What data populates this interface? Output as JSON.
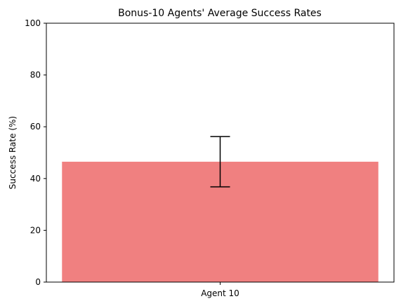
{
  "chart_data": {
    "type": "bar",
    "title": "Bonus-10 Agents' Average Success Rates",
    "xlabel": "",
    "ylabel": "Success Rate (%)",
    "categories": [
      "Agent 10"
    ],
    "values": [
      46.5
    ],
    "error": [
      9.7
    ],
    "ylim": [
      0,
      100
    ],
    "yticks": [
      0,
      20,
      40,
      60,
      80,
      100
    ],
    "grid": false,
    "legend": "none",
    "colors": {
      "bar": "#f08080",
      "errorbar": "#000000",
      "axis": "#000000"
    }
  }
}
